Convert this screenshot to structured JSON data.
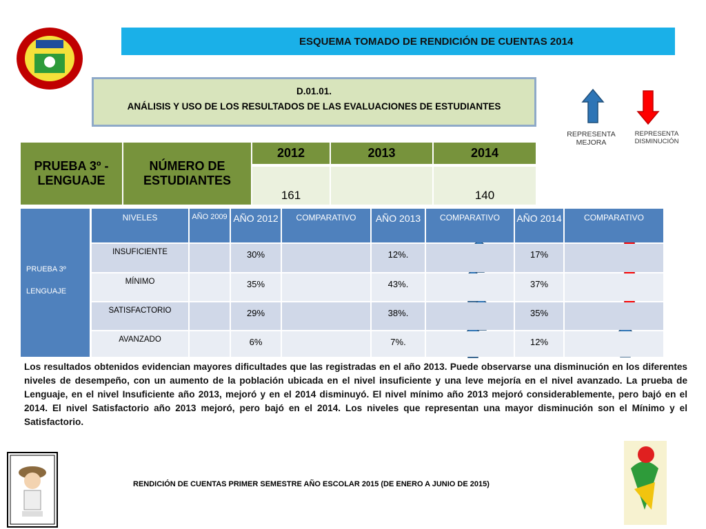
{
  "header": {
    "title": "ESQUEMA TOMADO DE  RENDICIÓN DE CUENTAS 2014"
  },
  "box": {
    "code": "D.01.01.",
    "title": "ANÁLISIS Y USO DE LOS RESULTADOS DE LAS EVALUACIONES DE ESTUDIANTES"
  },
  "legend": {
    "up": "REPRESENTA MEJORA",
    "down": "REPRESENTA DISMINUCIÓN"
  },
  "top_table": {
    "label": "PRUEBA 3º - LENGUAJE",
    "count_label": "NÚMERO DE ESTUDIANTES",
    "years": [
      "2012",
      "2013",
      "2014"
    ],
    "count_2012": "161",
    "count_2014": "140"
  },
  "table": {
    "side_label": [
      "PRUEBA 3º",
      "LENGUAJE"
    ],
    "columns": [
      "NIVELES",
      "AÑO 2009",
      "AÑO 2012",
      "COMPARATIVO",
      "AÑO 2013",
      "COMPARATIVO",
      "AÑO 2014",
      "COMPARATIVO"
    ],
    "rows": [
      {
        "level": "INSUFICIENTE",
        "y2012": "30%",
        "y2013": "12%.",
        "y2014": "17%"
      },
      {
        "level": "MÍNIMO",
        "y2012": "35%",
        "y2013": "43%.",
        "y2014": "37%"
      },
      {
        "level": "SATISFACTORIO",
        "y2012": "29%",
        "y2013": "38%.",
        "y2014": "35%"
      },
      {
        "level": "AVANZADO",
        "y2012": "6%",
        "y2013": "7%.",
        "y2014": "12%"
      }
    ]
  },
  "paragraph": "Los resultados obtenidos evidencian mayores dificultades que las registradas en el año 2013. Puede observarse una disminución en los diferentes niveles de desempeño, con un aumento de la población ubicada en el nivel insuficiente y una leve mejoría en el nivel avanzado. La prueba de Lenguaje, en el nivel Insuficiente año 2013, mejoró y en el 2014 disminuyó. El nivel mínimo año 2013 mejoró considerablemente, pero bajó en el 2014. El nivel Satisfactorio año 2013 mejoró, pero bajó en el 2014. Los niveles que representan una mayor disminución son el Mínimo y el Satisfactorio.",
  "footer": "RENDICIÓN DE CUENTAS PRIMER SEMESTRE AÑO ESCOLAR 2015 (DE ENERO A JUNIO DE 2015)"
}
